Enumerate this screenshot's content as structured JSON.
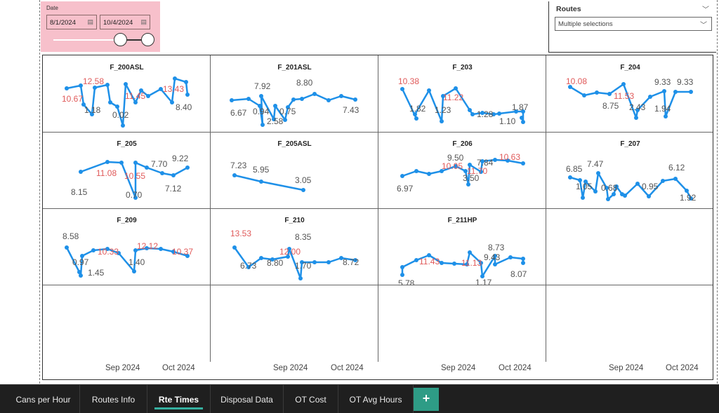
{
  "date_slicer": {
    "title": "Date",
    "start": "8/1/2024",
    "end": "10/4/2024",
    "calendar_icon": "calendar-icon"
  },
  "routes_slicer": {
    "title": "Routes",
    "selection": "Multiple selections"
  },
  "x_axis_labels": [
    "Sep 2024",
    "Oct 2024"
  ],
  "panels": [
    {
      "title": "F_200ASL",
      "labels": [
        {
          "text": "10.67",
          "color": "red"
        },
        {
          "text": "12.58",
          "color": "red"
        },
        {
          "text": "1.18",
          "color": "dark"
        },
        {
          "text": "0.02",
          "color": "dark"
        },
        {
          "text": "11.45",
          "color": "red"
        },
        {
          "text": "13.43",
          "color": "red"
        },
        {
          "text": "8.40",
          "color": "dark"
        }
      ]
    },
    {
      "title": "F_201ASL",
      "labels": [
        {
          "text": "6.67",
          "color": "dark"
        },
        {
          "text": "7.92",
          "color": "dark"
        },
        {
          "text": "0.94",
          "color": "dark"
        },
        {
          "text": "2.58",
          "color": "dark"
        },
        {
          "text": "0.75",
          "color": "dark"
        },
        {
          "text": "8.80",
          "color": "dark"
        },
        {
          "text": "7.43",
          "color": "dark"
        }
      ]
    },
    {
      "title": "F_203",
      "labels": [
        {
          "text": "10.38",
          "color": "red"
        },
        {
          "text": "1.82",
          "color": "dark"
        },
        {
          "text": "1.23",
          "color": "dark"
        },
        {
          "text": "11.22",
          "color": "red"
        },
        {
          "text": "1.28",
          "color": "dark"
        },
        {
          "text": "1.10",
          "color": "dark"
        },
        {
          "text": "1.87",
          "color": "dark"
        }
      ]
    },
    {
      "title": "F_204",
      "labels": [
        {
          "text": "10.08",
          "color": "red"
        },
        {
          "text": "8.75",
          "color": "dark"
        },
        {
          "text": "11.53",
          "color": "red"
        },
        {
          "text": "2.43",
          "color": "dark"
        },
        {
          "text": "9.33",
          "color": "dark"
        },
        {
          "text": "1.94",
          "color": "dark"
        },
        {
          "text": "9.33",
          "color": "dark"
        }
      ]
    },
    {
      "title": "F_205",
      "labels": [
        {
          "text": "8.15",
          "color": "dark"
        },
        {
          "text": "11.08",
          "color": "red"
        },
        {
          "text": "10.55",
          "color": "red"
        },
        {
          "text": "0.70",
          "color": "dark"
        },
        {
          "text": "7.70",
          "color": "dark"
        },
        {
          "text": "7.12",
          "color": "dark"
        },
        {
          "text": "9.22",
          "color": "dark"
        }
      ]
    },
    {
      "title": "F_205ASL",
      "labels": [
        {
          "text": "7.23",
          "color": "dark"
        },
        {
          "text": "5.95",
          "color": "dark"
        },
        {
          "text": "3.05",
          "color": "dark"
        }
      ]
    },
    {
      "title": "F_206",
      "labels": [
        {
          "text": "6.97",
          "color": "dark"
        },
        {
          "text": "9.50",
          "color": "dark"
        },
        {
          "text": "10.05",
          "color": "red"
        },
        {
          "text": "3.50",
          "color": "dark"
        },
        {
          "text": "7.84",
          "color": "dark"
        },
        {
          "text": "11.70",
          "color": "red"
        },
        {
          "text": "10.63",
          "color": "red"
        }
      ]
    },
    {
      "title": "F_207",
      "labels": [
        {
          "text": "6.85",
          "color": "dark"
        },
        {
          "text": "1.05",
          "color": "dark"
        },
        {
          "text": "7.47",
          "color": "dark"
        },
        {
          "text": "0.68",
          "color": "dark"
        },
        {
          "text": "0.95",
          "color": "dark"
        },
        {
          "text": "6.12",
          "color": "dark"
        },
        {
          "text": "1.92",
          "color": "dark"
        }
      ]
    },
    {
      "title": "F_209",
      "labels": [
        {
          "text": "8.58",
          "color": "dark"
        },
        {
          "text": "0.97",
          "color": "dark"
        },
        {
          "text": "1.45",
          "color": "dark"
        },
        {
          "text": "10.33",
          "color": "red"
        },
        {
          "text": "1.40",
          "color": "dark"
        },
        {
          "text": "12.12",
          "color": "red"
        },
        {
          "text": "10.37",
          "color": "red"
        }
      ]
    },
    {
      "title": "F_210",
      "labels": [
        {
          "text": "13.53",
          "color": "red"
        },
        {
          "text": "6.73",
          "color": "dark"
        },
        {
          "text": "8.80",
          "color": "dark"
        },
        {
          "text": "12.00",
          "color": "red"
        },
        {
          "text": "8.35",
          "color": "dark"
        },
        {
          "text": "1.70",
          "color": "dark"
        },
        {
          "text": "8.72",
          "color": "dark"
        }
      ]
    },
    {
      "title": "F_211HP",
      "labels": [
        {
          "text": "5.78",
          "color": "dark"
        },
        {
          "text": "11.43",
          "color": "red"
        },
        {
          "text": "11.13",
          "color": "red"
        },
        {
          "text": "1.17",
          "color": "dark"
        },
        {
          "text": "8.73",
          "color": "dark"
        },
        {
          "text": "9.43",
          "color": "dark"
        },
        {
          "text": "8.07",
          "color": "dark"
        }
      ]
    }
  ],
  "tabs": [
    "Cans per Hour",
    "Routes Info",
    "Rte Times",
    "Disposal Data",
    "OT Cost",
    "OT Avg Hours"
  ],
  "active_tab": "Rte Times",
  "add_tab_label": "+",
  "colors": {
    "line": "#1e90e8",
    "label_red": "#e05a5a",
    "label_dark": "#555555",
    "date_slicer_bg": "#f7c0cb",
    "tab_accent": "#35b0a0"
  }
}
